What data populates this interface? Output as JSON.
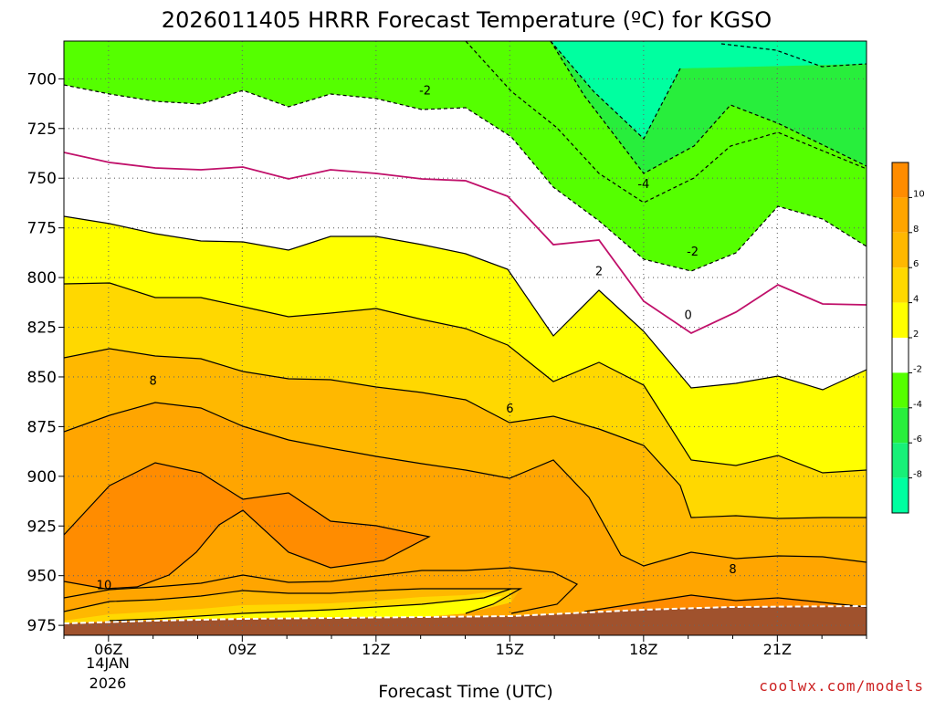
{
  "chart_data": {
    "type": "contour",
    "title": "2026011405 HRRR Forecast Temperature (ºC) for KGSO",
    "xlabel": "Forecast Time (UTC)",
    "ylabel": "",
    "credit": "coolwx.com/models",
    "x_ticks": [
      "06Z",
      "09Z",
      "12Z",
      "15Z",
      "18Z",
      "21Z"
    ],
    "x_date_lines": [
      "14JAN",
      "2026"
    ],
    "x_range_hours": [
      5,
      23
    ],
    "y_ticks": [
      "700",
      "725",
      "750",
      "775",
      "800",
      "825",
      "850",
      "875",
      "900",
      "925",
      "950",
      "975"
    ],
    "y_range_hpa": [
      681,
      980
    ],
    "contour_labels": [
      {
        "text": "-2",
        "x": 13.1,
        "y": 706
      },
      {
        "text": "-4",
        "x": 18.0,
        "y": 753
      },
      {
        "text": "-2",
        "x": 19.1,
        "y": 787
      },
      {
        "text": "2",
        "x": 17.0,
        "y": 797
      },
      {
        "text": "0",
        "x": 19.0,
        "y": 819
      },
      {
        "text": "8",
        "x": 7.0,
        "y": 852
      },
      {
        "text": "6",
        "x": 15.0,
        "y": 866
      },
      {
        "text": "8",
        "x": 20.0,
        "y": 947
      },
      {
        "text": "10",
        "x": 5.9,
        "y": 955
      }
    ],
    "colorbar": {
      "ticks": [
        "10",
        "8",
        "6",
        "4",
        "2",
        "-2",
        "-4",
        "-6",
        "-8"
      ],
      "bins": [
        {
          "range": "> 10",
          "color": "#ff8c00"
        },
        {
          "range": "8 to 10",
          "color": "#ffa500"
        },
        {
          "range": "6 to 8",
          "color": "#ffb800"
        },
        {
          "range": "4 to 6",
          "color": "#ffd800"
        },
        {
          "range": "2 to 4",
          "color": "#ffff00"
        },
        {
          "range": "-2 to 2",
          "color": "#ffffff"
        },
        {
          "range": "-4 to -2",
          "color": "#55ff00"
        },
        {
          "range": "-6 to -4",
          "color": "#28ee3c"
        },
        {
          "range": "-8 to -6",
          "color": "#18f078"
        },
        {
          "range": "< -8",
          "color": "#00ffa0"
        }
      ]
    },
    "colors": {
      "ground": "#a0522d",
      "freezing_line": "#c0106a",
      "contour_line": "#000000"
    }
  }
}
